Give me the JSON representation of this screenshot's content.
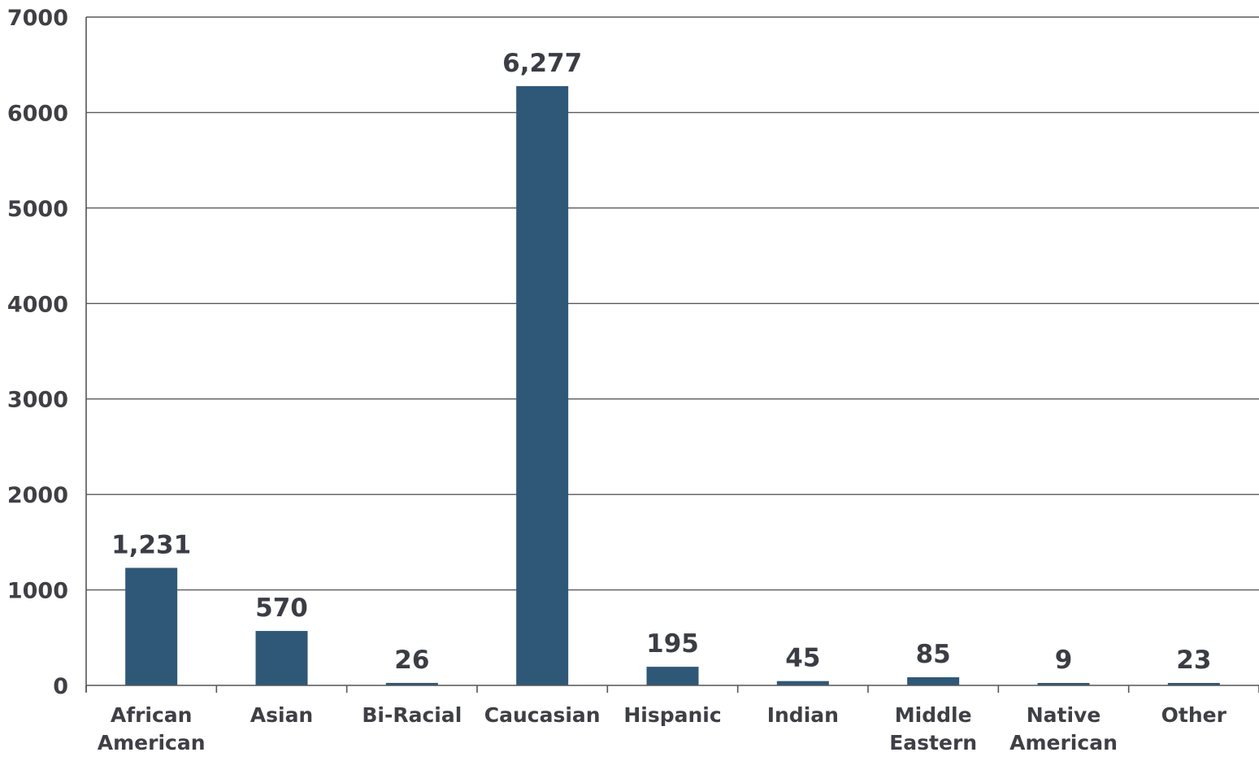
{
  "chart_data": {
    "type": "bar",
    "categories": [
      [
        "African",
        "American"
      ],
      [
        "Asian"
      ],
      [
        "Bi-Racial"
      ],
      [
        "Caucasian"
      ],
      [
        "Hispanic"
      ],
      [
        "Indian"
      ],
      [
        "Middle",
        "Eastern"
      ],
      [
        "Native",
        "American"
      ],
      [
        "Other"
      ]
    ],
    "values": [
      1231,
      570,
      26,
      6277,
      195,
      45,
      85,
      9,
      23
    ],
    "data_labels": [
      "1,231",
      "570",
      "26",
      "6,277",
      "195",
      "45",
      "85",
      "9",
      "23"
    ],
    "y_ticks": [
      "0",
      "1000",
      "2000",
      "3000",
      "4000",
      "5000",
      "6000",
      "7000"
    ],
    "ylim": [
      0,
      7000
    ],
    "grid": true,
    "bar_color": "#2f5878",
    "title": "",
    "xlabel": "",
    "ylabel": ""
  }
}
